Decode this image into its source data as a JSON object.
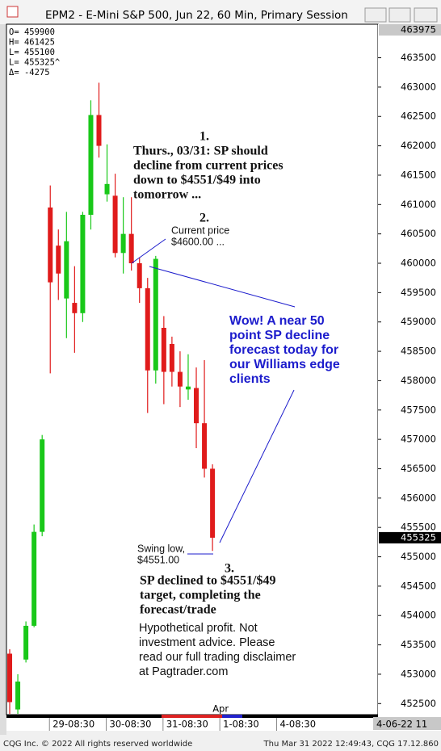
{
  "window_title": "EPM2 - E-Mini S&P 500, Jun 22, 60 Min, Primary Session",
  "chart_data": {
    "type": "candlestick",
    "header_stats": [
      "O= 459900",
      "H= 461425",
      "L= 455100",
      "L= 455325^",
      "Δ=   -4275"
    ],
    "up_color": "#19c819",
    "down_color": "#e01b1b",
    "open": [
      453350,
      452400,
      453250,
      453825,
      455425,
      460950,
      460300,
      459400,
      459325,
      459150,
      460825,
      462525,
      461175,
      461150,
      460175,
      460500,
      460000,
      459575,
      458175,
      458900,
      458625,
      458150,
      457850,
      457875,
      457275,
      456500
    ],
    "high": [
      453425,
      453000,
      453900,
      455550,
      457075,
      461325,
      460575,
      460875,
      459950,
      460875,
      462775,
      463075,
      462025,
      461525,
      461125,
      461125,
      460100,
      459750,
      460125,
      459100,
      458750,
      458500,
      458450,
      458225,
      458350,
      456575
    ],
    "low": [
      452325,
      452325,
      453200,
      453800,
      455350,
      458125,
      459375,
      458725,
      458475,
      459000,
      460575,
      461800,
      461050,
      460100,
      459825,
      459875,
      459325,
      457450,
      457950,
      457600,
      457900,
      457550,
      457675,
      456850,
      456350,
      455100
    ],
    "close": [
      452525,
      452875,
      453825,
      455425,
      457000,
      459675,
      459825,
      460375,
      459150,
      460825,
      462525,
      462000,
      461350,
      460175,
      460500,
      460000,
      459575,
      458175,
      460075,
      458150,
      458150,
      457900,
      457900,
      457275,
      456500,
      455325
    ],
    "xlim": [
      -0.4,
      45.4
    ],
    "xticks": [
      {
        "value": 5,
        "label": "29-08:30"
      },
      {
        "value": 12,
        "label": "30-08:30"
      },
      {
        "value": 19,
        "label": "31-08:30"
      },
      {
        "value": 26,
        "label": "1-08:30"
      },
      {
        "value": 33,
        "label": "4-08:30"
      }
    ],
    "month_label": "Apr",
    "x_end_label": "4-06-22 11",
    "ylim": [
      452325,
      463975
    ],
    "yticks": [
      463500,
      463000,
      462500,
      462000,
      461500,
      461000,
      460500,
      460000,
      459500,
      459000,
      458500,
      458000,
      457500,
      457000,
      456500,
      456000,
      455500,
      455000,
      454500,
      454000,
      453500,
      453000,
      452500
    ],
    "annotations": {
      "n1": "1.",
      "forecast": [
        "Thurs., 03/31: SP should",
        "decline from current prices",
        "down to $4551/$49 into",
        "tomorrow  ..."
      ],
      "n2": "2.",
      "current": [
        "Current price",
        "$4600.00 ..."
      ],
      "wow": [
        "Wow! A near 50",
        "point SP decline",
        "forecast today for",
        "our Williams edge",
        "clients"
      ],
      "swing": [
        "Swing low,",
        "$4551.00"
      ],
      "n3": "3.",
      "result": [
        "SP declined to $4551/$49",
        "target, completing the",
        "forecast/trade"
      ],
      "disclaimer": [
        "Hypothetical profit. Not",
        "investment advice. Please",
        "read our full trading disclaimer",
        "at Pagtrader.com"
      ]
    }
  },
  "footer_left": "CQG Inc. © 2022 All rights reserved worldwide",
  "footer_right": "Thu Mar 31 2022 12:49:43, CQG 17.12.860"
}
